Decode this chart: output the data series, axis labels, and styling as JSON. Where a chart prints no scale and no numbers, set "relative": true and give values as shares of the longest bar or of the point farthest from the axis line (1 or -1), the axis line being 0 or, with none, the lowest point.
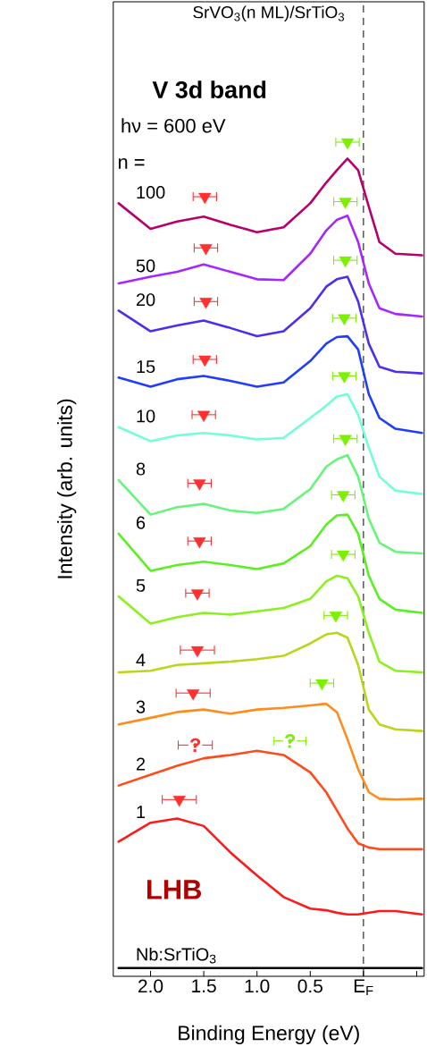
{
  "chart_data": {
    "type": "line",
    "relative": true,
    "title": "SrVO$_{3}$(n ML)/SrTiO$_{3}$",
    "xlabel": "Binding Energy (eV)",
    "ylabel": "Intensity (arb. units)",
    "xlim": [
      2.35,
      -0.57
    ],
    "xticks": [
      {
        "value": 2.0,
        "label": "2.0"
      },
      1.5,
      {
        "value": 1.0,
        "label": "1.0"
      },
      0.5,
      {
        "value": 0,
        "label": "E$_{F}$"
      },
      {
        "value": -0.5,
        "label": null
      }
    ],
    "x": [
      2.3,
      2.0,
      1.75,
      1.5,
      1.25,
      1.0,
      0.75,
      0.5,
      0.35,
      0.25,
      0.15,
      0.05,
      -0.05,
      -0.15,
      -0.3,
      -0.55
    ],
    "ref_lines": [
      {
        "axis": "x",
        "value": 0,
        "color": "#000000",
        "line_style": "dashed"
      }
    ],
    "annotations": [
      "V 3d band",
      "hν = 600 eV",
      "n =",
      "LHB",
      {
        "text": "?",
        "x": 1.58,
        "y": 0.27
      },
      {
        "text": "?",
        "x": 0.69,
        "y": 0.275
      }
    ],
    "series": [
      {
        "name": "100",
        "color": "#b5006e",
        "values": [
          0.926,
          0.895,
          0.904,
          0.91,
          0.9,
          0.891,
          0.897,
          0.926,
          0.951,
          0.966,
          0.98,
          0.966,
          0.922,
          0.879,
          0.865,
          0.863
        ]
      },
      {
        "name": "50",
        "color": "#a626ff",
        "values": [
          0.829,
          0.837,
          0.843,
          0.852,
          0.843,
          0.834,
          0.833,
          0.865,
          0.893,
          0.906,
          0.911,
          0.879,
          0.829,
          0.799,
          0.792,
          0.789
        ]
      },
      {
        "name": "20",
        "color": "#4b2ef0",
        "values": [
          0.796,
          0.771,
          0.778,
          0.784,
          0.775,
          0.765,
          0.771,
          0.799,
          0.825,
          0.834,
          0.837,
          0.807,
          0.756,
          0.728,
          0.722,
          0.72
        ]
      },
      {
        "name": "15",
        "color": "#1f3cff",
        "values": [
          0.715,
          0.704,
          0.713,
          0.717,
          0.711,
          0.704,
          0.709,
          0.735,
          0.756,
          0.764,
          0.765,
          0.749,
          0.695,
          0.666,
          0.653,
          0.648
        ]
      },
      {
        "name": "10",
        "color": "#70ffd8",
        "values": [
          0.655,
          0.638,
          0.645,
          0.648,
          0.645,
          0.64,
          0.642,
          0.666,
          0.681,
          0.692,
          0.695,
          0.67,
          0.63,
          0.595,
          0.578,
          0.574
        ]
      },
      {
        "name": "8",
        "color": "#66f57a",
        "values": [
          0.591,
          0.549,
          0.558,
          0.562,
          0.554,
          0.551,
          0.556,
          0.58,
          0.607,
          0.616,
          0.621,
          0.595,
          0.544,
          0.515,
          0.504,
          0.502
        ]
      },
      {
        "name": "6",
        "color": "#59f022",
        "values": [
          0.526,
          0.481,
          0.488,
          0.492,
          0.488,
          0.483,
          0.49,
          0.511,
          0.537,
          0.548,
          0.549,
          0.526,
          0.475,
          0.447,
          0.434,
          0.43
        ]
      },
      {
        "name": "5",
        "color": "#8cf01e",
        "values": [
          0.45,
          0.417,
          0.425,
          0.43,
          0.428,
          0.432,
          0.436,
          0.447,
          0.468,
          0.475,
          0.472,
          0.45,
          0.406,
          0.371,
          0.36,
          0.358
        ]
      },
      {
        "name": "4",
        "color": "#bcd41a",
        "values": [
          0.358,
          0.36,
          0.367,
          0.369,
          0.371,
          0.374,
          0.378,
          0.393,
          0.404,
          0.406,
          0.4,
          0.367,
          0.313,
          0.295,
          0.289,
          0.287
        ]
      },
      {
        "name": "3",
        "color": "#ff8c1a",
        "values": [
          0.295,
          0.303,
          0.31,
          0.313,
          0.308,
          0.313,
          0.315,
          0.318,
          0.32,
          0.31,
          0.277,
          0.241,
          0.213,
          0.205,
          0.204,
          0.205
        ]
      },
      {
        "name": "2",
        "color": "#ff4a1a",
        "values": [
          0.221,
          0.234,
          0.245,
          0.254,
          0.258,
          0.263,
          0.258,
          0.237,
          0.213,
          0.191,
          0.169,
          0.151,
          0.146,
          0.144,
          0.144,
          0.144
        ]
      },
      {
        "name": "1",
        "color": "#ff1a1a",
        "values": [
          0.153,
          0.176,
          0.181,
          0.172,
          0.14,
          0.112,
          0.086,
          0.072,
          0.07,
          0.067,
          0.065,
          0.065,
          0.067,
          0.069,
          0.069,
          0.065
        ]
      },
      {
        "name": "Nb:SrTiO$_{3}$",
        "color": "#000000",
        "values": [
          0,
          0,
          0,
          0,
          0,
          0,
          0,
          0,
          0,
          0,
          0,
          0,
          0,
          0,
          0,
          0
        ]
      },
      {
        "type": "scatter",
        "marker": "triangle",
        "color": "#ff3030",
        "x": [
          1.49,
          1.48,
          1.48,
          1.49,
          1.5,
          1.54,
          1.54,
          1.56,
          1.56,
          1.6,
          1.73
        ],
        "values": [
          0.934,
          0.872,
          0.807,
          0.737,
          0.67,
          0.587,
          0.517,
          0.454,
          0.385,
          0.333,
          0.204
        ],
        "xerrors": [
          0.11,
          0.11,
          0.11,
          0.11,
          0.11,
          0.11,
          0.11,
          0.11,
          0.16,
          0.16,
          0.16
        ]
      },
      {
        "type": "scatter",
        "marker": "triangle",
        "color": "#7cf000",
        "x": [
          0.15,
          0.17,
          0.17,
          0.18,
          0.18,
          0.17,
          0.19,
          0.19,
          0.26,
          0.39
        ],
        "values": [
          1.0,
          0.928,
          0.857,
          0.787,
          0.717,
          0.641,
          0.573,
          0.501,
          0.427,
          0.345
        ],
        "xerrors": [
          0.11,
          0.11,
          0.11,
          0.11,
          0.11,
          0.11,
          0.11,
          0.11,
          0.11,
          0.11
        ]
      },
      {
        "type": "scatter",
        "marker": "none",
        "color": "#ff3030",
        "x": [
          1.58
        ],
        "values": [
          0.27
        ],
        "xerrors": [
          0.16
        ]
      },
      {
        "type": "scatter",
        "marker": "none",
        "color": "#7cf000",
        "x": [
          0.69
        ],
        "values": [
          0.275
        ],
        "xerrors": [
          0.15
        ]
      }
    ]
  }
}
